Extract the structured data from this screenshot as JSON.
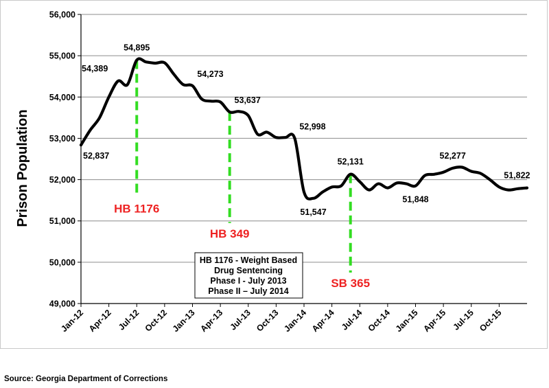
{
  "chart_data": {
    "type": "line",
    "title": "",
    "xlabel": "",
    "ylabel": "Prison Population",
    "ylim": [
      49000,
      56000
    ],
    "ytick_values": [
      49000,
      50000,
      51000,
      52000,
      53000,
      54000,
      55000,
      56000
    ],
    "ytick_labels": [
      "49,000",
      "50,000",
      "51,000",
      "52,000",
      "53,000",
      "54,000",
      "55,000",
      "56,000"
    ],
    "xlim": [
      0,
      48
    ],
    "xtick_positions": [
      0,
      3,
      6,
      9,
      12,
      15,
      18,
      21,
      24,
      27,
      30,
      33,
      36,
      39,
      42,
      45
    ],
    "xtick_labels": [
      "Jan-12",
      "Apr-12",
      "Jul-12",
      "Oct-12",
      "Jan-13",
      "Apr-13",
      "Jul-13",
      "Oct-13",
      "Jan-14",
      "Apr-14",
      "Jul-14",
      "Oct-14",
      "Jan-15",
      "Apr-15",
      "Jul-15",
      "Oct-15"
    ],
    "grid": true,
    "series": [
      {
        "name": "Prison Population",
        "x": [
          0,
          1,
          2,
          3,
          4,
          5,
          6,
          7,
          8,
          9,
          10,
          11,
          12,
          13,
          14,
          15,
          16,
          17,
          18,
          19,
          20,
          21,
          22,
          23,
          24,
          25,
          26,
          27,
          28,
          29,
          30,
          31,
          32,
          33,
          34,
          35,
          36,
          37,
          38,
          39,
          40,
          41,
          42,
          43,
          44,
          45,
          46,
          47,
          48
        ],
        "values": [
          52837,
          53200,
          53500,
          54000,
          54389,
          54300,
          54895,
          54850,
          54820,
          54830,
          54550,
          54300,
          54273,
          53950,
          53900,
          53880,
          53637,
          53650,
          53550,
          53100,
          53150,
          53020,
          53020,
          52998,
          51700,
          51547,
          51700,
          51820,
          51850,
          52131,
          51950,
          51750,
          51900,
          51800,
          51920,
          51900,
          51848,
          52100,
          52130,
          52180,
          52277,
          52300,
          52200,
          52150,
          52000,
          51822,
          51750,
          51780,
          51800
        ],
        "color": "#000000"
      }
    ],
    "data_labels": [
      {
        "text": "52,837",
        "x": 0,
        "y": 52837,
        "anchor": "below-right"
      },
      {
        "text": "54,389",
        "x": 4,
        "y": 54389,
        "anchor": "above-left"
      },
      {
        "text": "54,895",
        "x": 6,
        "y": 54895,
        "anchor": "above"
      },
      {
        "text": "54,273",
        "x": 12,
        "y": 54273,
        "anchor": "above-right"
      },
      {
        "text": "53,637",
        "x": 16,
        "y": 53637,
        "anchor": "above-right"
      },
      {
        "text": "52,998",
        "x": 23,
        "y": 52998,
        "anchor": "above-right"
      },
      {
        "text": "51,547",
        "x": 25,
        "y": 51547,
        "anchor": "below"
      },
      {
        "text": "52,131",
        "x": 29,
        "y": 52131,
        "anchor": "above"
      },
      {
        "text": "51,848",
        "x": 36,
        "y": 51848,
        "anchor": "below"
      },
      {
        "text": "52,277",
        "x": 40,
        "y": 52277,
        "anchor": "above"
      },
      {
        "text": "51,822",
        "x": 45,
        "y": 51822,
        "anchor": "above-right"
      }
    ],
    "annotations": [
      {
        "label": "HB 1176",
        "x": 6,
        "line_from": 54895,
        "line_to": 51600,
        "label_y": 51200,
        "line_color": "#33dd22",
        "text_color": "#ee2222"
      },
      {
        "label": "HB 349",
        "x": 16,
        "line_from": 53637,
        "line_to": 50950,
        "label_y": 50600,
        "line_color": "#33dd22",
        "text_color": "#ee2222"
      },
      {
        "label": "SB 365",
        "x": 29,
        "line_from": 52131,
        "line_to": 49750,
        "label_y": 49400,
        "line_color": "#33dd22",
        "text_color": "#ee2222"
      }
    ],
    "note_box": {
      "lines": [
        "HB 1176 - Weight Based",
        "Drug Sentencing",
        "Phase I - July 2013",
        "Phase II – July 2014"
      ]
    }
  },
  "source": "Source: Georgia Department of Corrections"
}
